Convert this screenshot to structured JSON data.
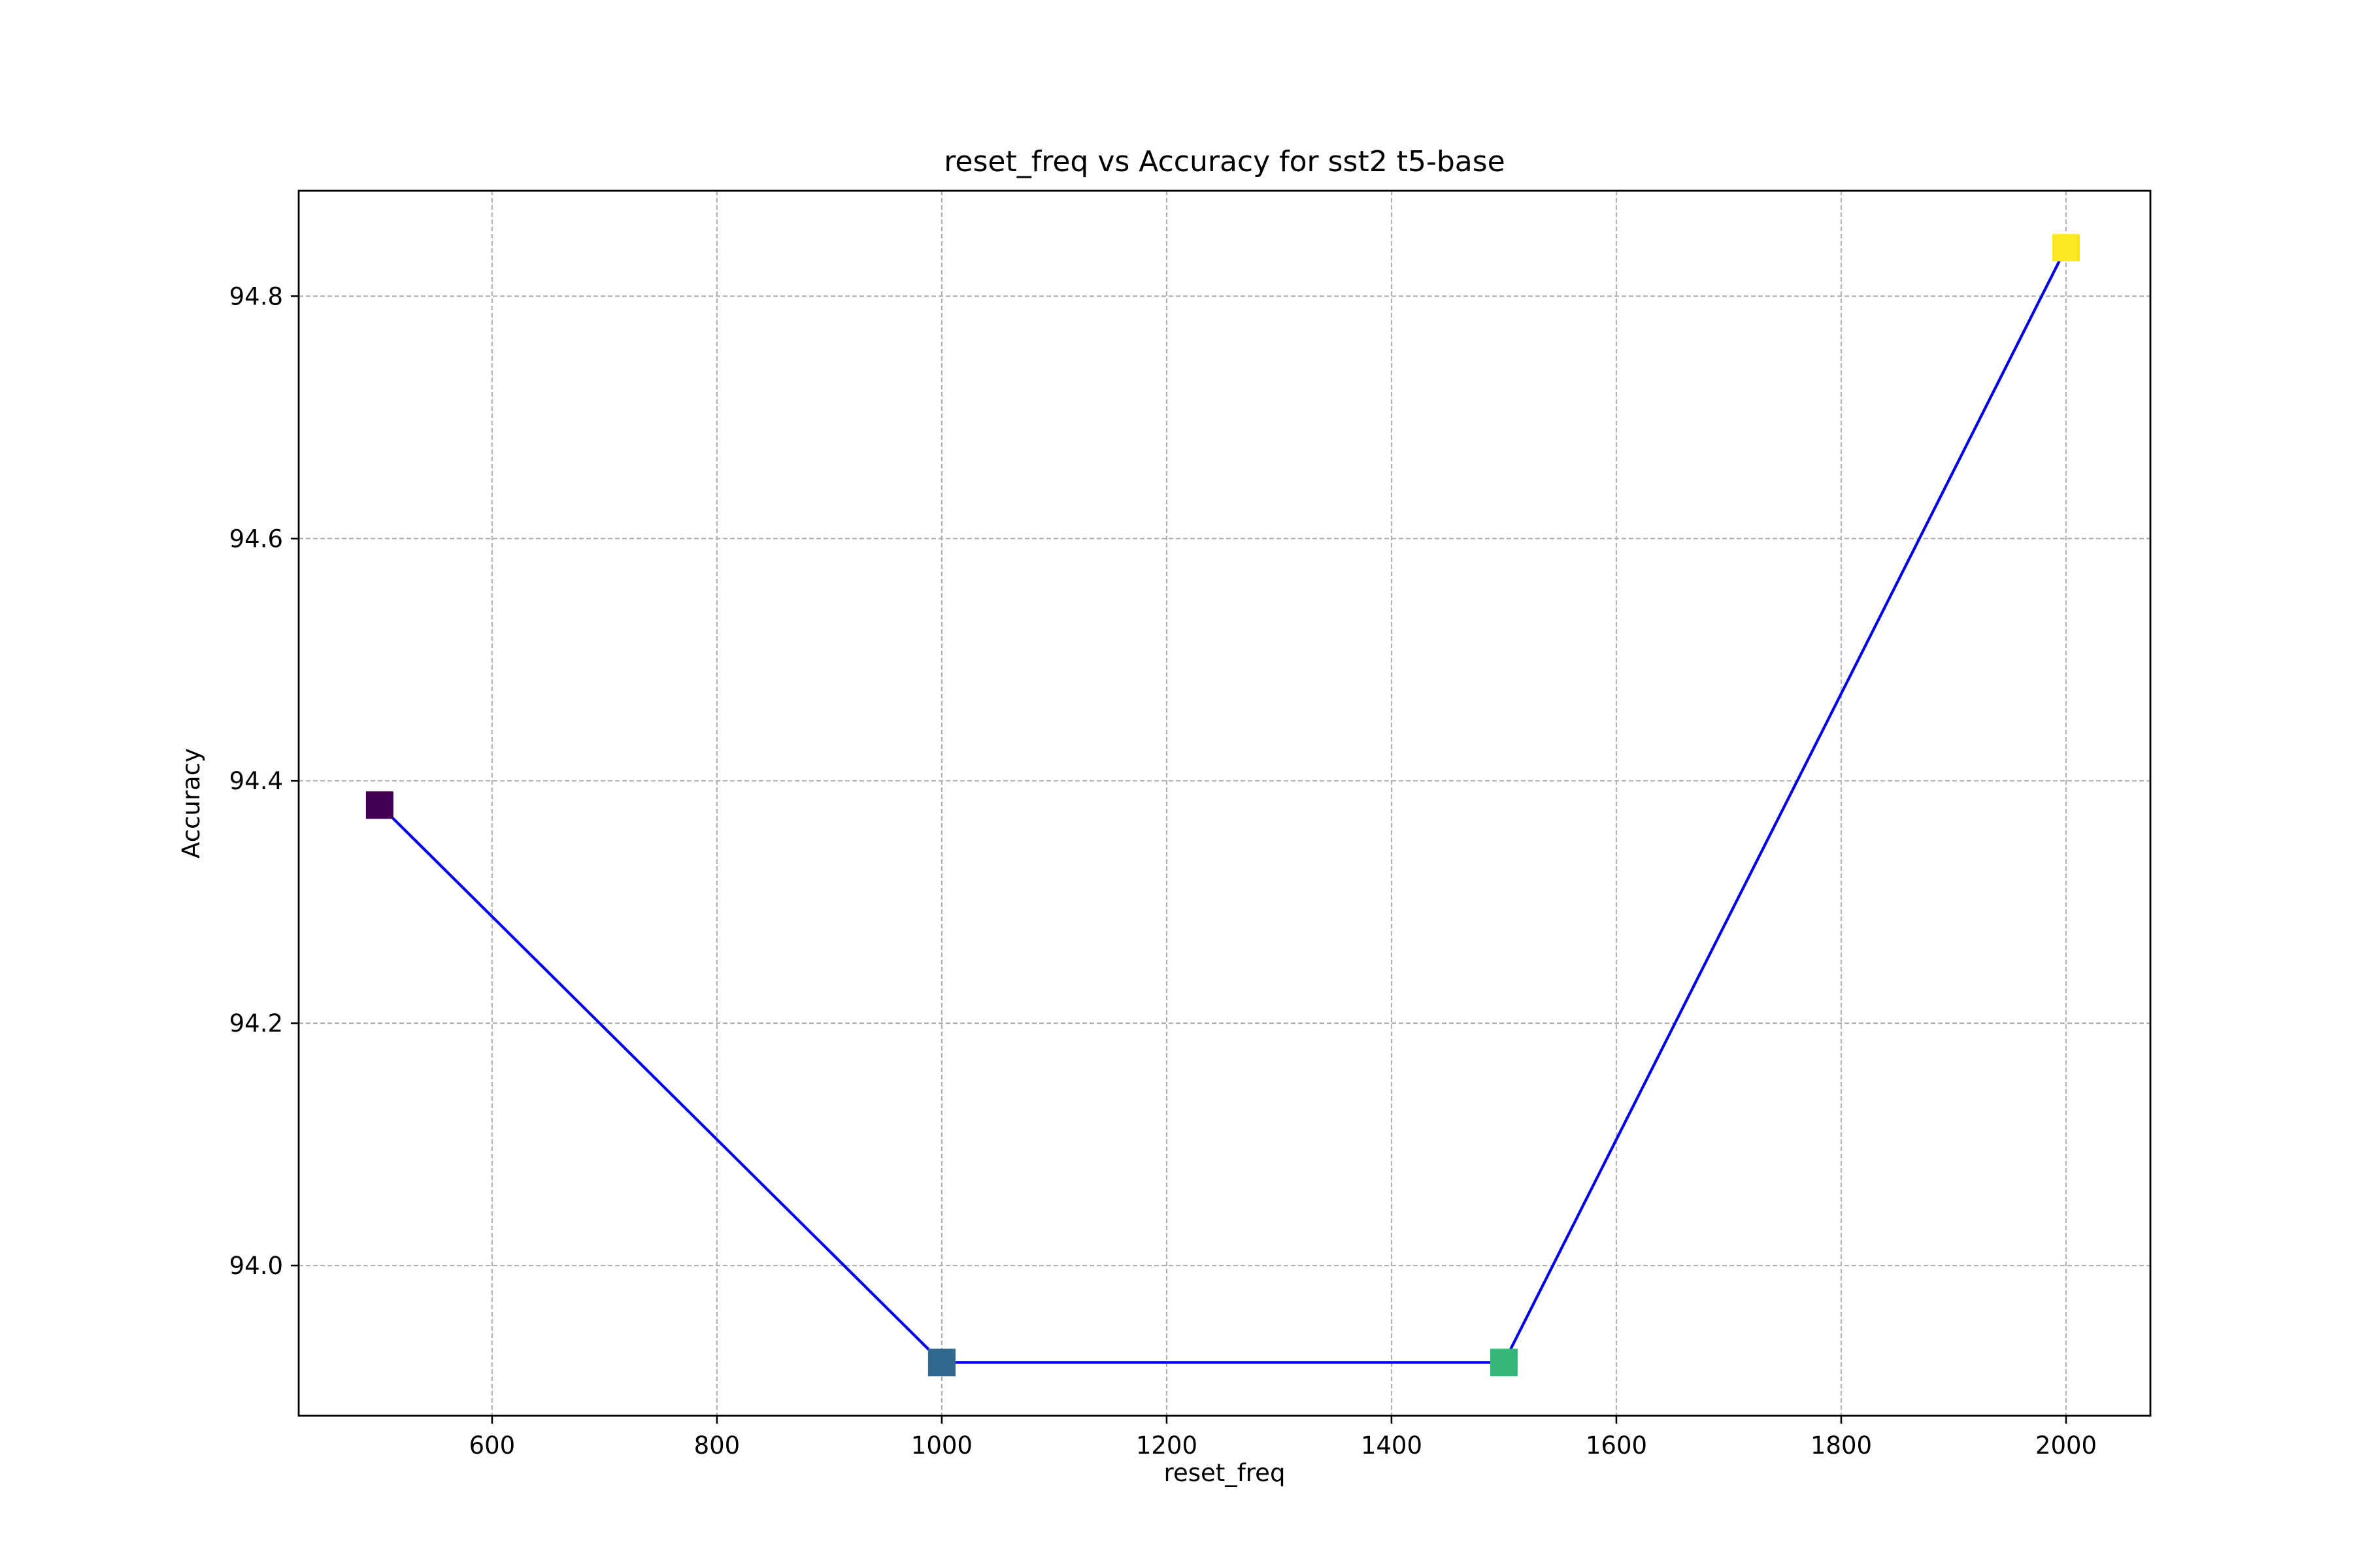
{
  "chart_data": {
    "type": "line",
    "title": "reset_freq vs Accuracy for sst2 t5-base",
    "xlabel": "reset_freq",
    "ylabel": "Accuracy",
    "xlim": [
      428,
      2075
    ],
    "ylim": [
      93.876,
      94.887
    ],
    "xticks": [
      600,
      800,
      1000,
      1200,
      1400,
      1600,
      1800,
      2000
    ],
    "xtick_labels": [
      "600",
      "800",
      "1000",
      "1200",
      "1400",
      "1600",
      "1800",
      "2000"
    ],
    "yticks": [
      94.0,
      94.2,
      94.4,
      94.6,
      94.8
    ],
    "ytick_labels": [
      "94.0",
      "94.2",
      "94.4",
      "94.6",
      "94.8"
    ],
    "grid": true,
    "series": [
      {
        "x": [
          500,
          1000,
          1500,
          2000
        ],
        "y": [
          94.38,
          93.92,
          93.92,
          94.84
        ],
        "line_color": "#0000ee",
        "marker": "square",
        "marker_colors": [
          "#440154",
          "#31688e",
          "#35b779",
          "#fde725"
        ]
      }
    ]
  }
}
